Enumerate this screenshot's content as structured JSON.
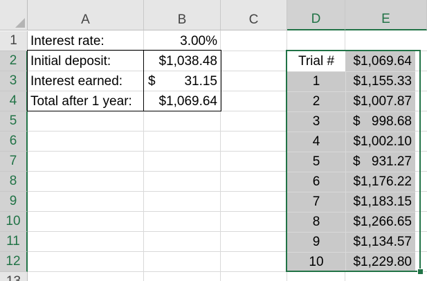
{
  "columns": [
    "A",
    "B",
    "C",
    "D",
    "E"
  ],
  "rows": [
    "1",
    "2",
    "3",
    "4",
    "5",
    "6",
    "7",
    "8",
    "9",
    "10",
    "11",
    "12",
    "13"
  ],
  "labels": {
    "interest_rate": "Interest rate:",
    "initial_deposit": "Initial deposit:",
    "interest_earned": "Interest earned:",
    "total_after": "Total after 1 year:"
  },
  "values": {
    "interest_rate": "3.00%",
    "initial_deposit": "$1,038.48",
    "interest_earned_symbol": "$",
    "interest_earned": "31.15",
    "total_after": "$1,069.64"
  },
  "trial_table": {
    "header_label": "Trial #",
    "header_value": "$1,069.64",
    "rows": [
      {
        "trial": "1",
        "symbol": "",
        "value": "$1,155.33"
      },
      {
        "trial": "2",
        "symbol": "",
        "value": "$1,007.87"
      },
      {
        "trial": "3",
        "symbol": "$",
        "value": "998.68"
      },
      {
        "trial": "4",
        "symbol": "",
        "value": "$1,002.10"
      },
      {
        "trial": "5",
        "symbol": "$",
        "value": "931.27"
      },
      {
        "trial": "6",
        "symbol": "",
        "value": "$1,176.22"
      },
      {
        "trial": "7",
        "symbol": "",
        "value": "$1,183.15"
      },
      {
        "trial": "8",
        "symbol": "",
        "value": "$1,266.65"
      },
      {
        "trial": "9",
        "symbol": "",
        "value": "$1,134.57"
      },
      {
        "trial": "10",
        "symbol": "",
        "value": "$1,229.80"
      }
    ]
  },
  "colors": {
    "selection": "#217346",
    "table_fill": "#c9c9c9",
    "header_fill": "#e6e6e6"
  }
}
